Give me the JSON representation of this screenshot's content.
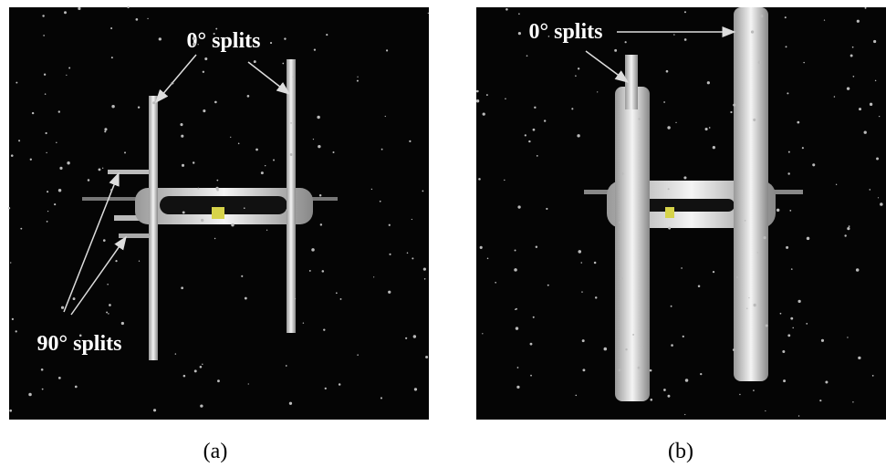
{
  "panels": [
    {
      "label": "(a)",
      "annotations": [
        "0° splits",
        "90° splits"
      ]
    },
    {
      "label": "(b)",
      "annotations": [
        "0° splits"
      ]
    }
  ]
}
